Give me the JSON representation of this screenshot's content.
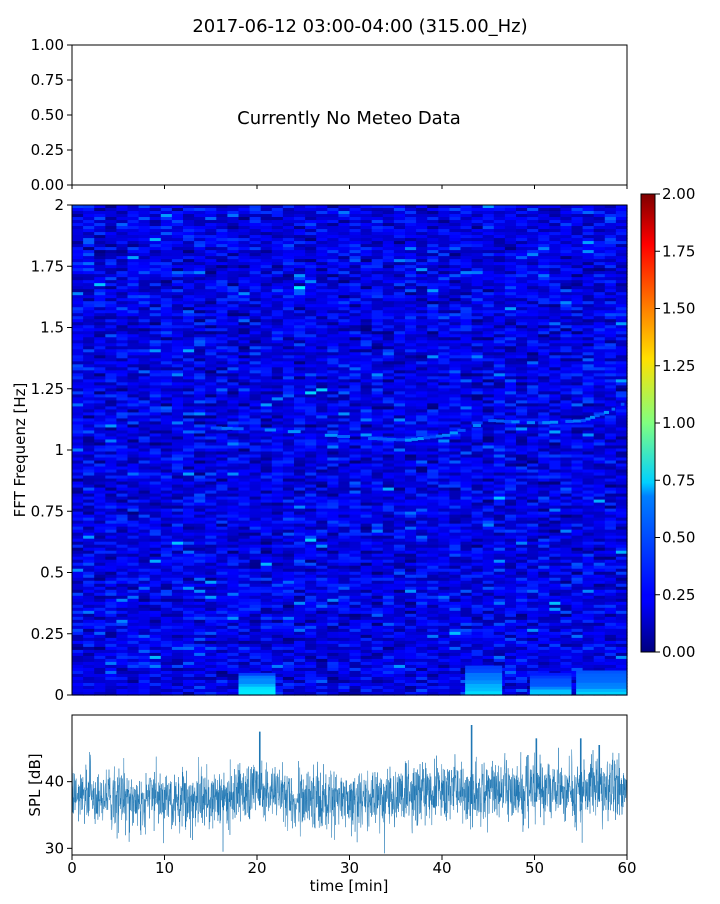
{
  "chart_data": [
    {
      "type": "text-panel",
      "title": "2017-06-12 03:00-04:00 (315.00_Hz)",
      "message": "Currently No Meteo Data",
      "ylim": [
        0,
        1
      ],
      "yticks": [
        "0.00",
        "0.25",
        "0.50",
        "0.75",
        "1.00"
      ]
    },
    {
      "type": "heatmap",
      "ylabel": "FFT Frequenz [Hz]",
      "xlim": [
        0,
        60
      ],
      "ylim": [
        0,
        2
      ],
      "yticks": [
        "0",
        "0.25",
        "0.5",
        "0.75",
        "1",
        "1.25",
        "1.5",
        "1.75",
        "2"
      ],
      "colormap": "jet",
      "colorbar": {
        "range": [
          0,
          2
        ],
        "ticks": [
          "0.00",
          "0.25",
          "0.50",
          "0.75",
          "1.00",
          "1.25",
          "1.50",
          "1.75",
          "2.00"
        ]
      },
      "background_level": 0.2,
      "hotspots": [
        {
          "t0": 18,
          "t1": 22,
          "f0": 0,
          "f1": 0.09,
          "level": 0.75
        },
        {
          "t0": 42.5,
          "t1": 46.5,
          "f0": 0,
          "f1": 0.12,
          "level": 0.65
        },
        {
          "t0": 49.5,
          "t1": 54,
          "f0": 0,
          "f1": 0.09,
          "level": 0.6
        },
        {
          "t0": 54.5,
          "t1": 60,
          "f0": 0,
          "f1": 0.1,
          "level": 0.65
        }
      ],
      "tracks": [
        {
          "t": [
            15,
            22,
            30,
            36,
            40,
            45,
            50,
            55,
            58,
            60
          ],
          "f": [
            1.09,
            1.08,
            1.05,
            1.04,
            1.06,
            1.12,
            1.11,
            1.12,
            1.16,
            1.2
          ],
          "level": 0.55
        }
      ]
    },
    {
      "type": "line",
      "ylabel": "SPL [dB]",
      "xlabel": "time [min]",
      "xlim": [
        0,
        60
      ],
      "ylim": [
        29,
        50
      ],
      "xticks": [
        "0",
        "10",
        "20",
        "30",
        "40",
        "50",
        "60"
      ],
      "yticks": [
        "30",
        "40"
      ],
      "color": "#1f77b4",
      "baseline": [
        [
          0,
          37.5
        ],
        [
          15,
          37.5
        ],
        [
          20,
          38.5
        ],
        [
          25,
          37.5
        ],
        [
          35,
          37.5
        ],
        [
          40,
          38.5
        ],
        [
          50,
          39.0
        ],
        [
          60,
          39.0
        ]
      ],
      "spread": 3.5,
      "spikes": [
        [
          20.3,
          47.5
        ],
        [
          43.2,
          48.5
        ],
        [
          50.2,
          46.5
        ],
        [
          55.0,
          46.5
        ],
        [
          57.0,
          45.5
        ]
      ]
    }
  ]
}
